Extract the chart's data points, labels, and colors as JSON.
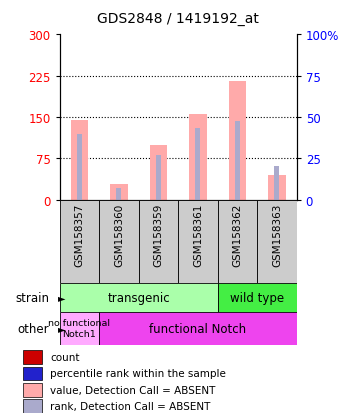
{
  "title": "GDS2848 / 1419192_at",
  "samples": [
    "GSM158357",
    "GSM158360",
    "GSM158359",
    "GSM158361",
    "GSM158362",
    "GSM158363"
  ],
  "value_absent": [
    145,
    28,
    100,
    155,
    215,
    45
  ],
  "rank_absent": [
    120,
    22,
    82,
    130,
    143,
    62
  ],
  "left_ylim": [
    0,
    300
  ],
  "right_ylim": [
    0,
    100
  ],
  "left_yticks": [
    0,
    75,
    150,
    225,
    300
  ],
  "right_yticks": [
    0,
    25,
    50,
    75,
    100
  ],
  "bar_color_absent": "#FFAAAA",
  "rank_color_absent": "#AAAACC",
  "transgenic_color": "#AAFFAA",
  "wildtype_color": "#44EE44",
  "nofunc_color": "#FFAAFF",
  "func_color": "#EE44EE",
  "gray_box_color": "#CCCCCC",
  "legend_items": [
    {
      "color": "#CC0000",
      "label": "count"
    },
    {
      "color": "#2222CC",
      "label": "percentile rank within the sample"
    },
    {
      "color": "#FFAAAA",
      "label": "value, Detection Call = ABSENT"
    },
    {
      "color": "#AAAACC",
      "label": "rank, Detection Call = ABSENT"
    }
  ],
  "title_fontsize": 10,
  "left_label_color": "red",
  "right_label_color": "blue"
}
